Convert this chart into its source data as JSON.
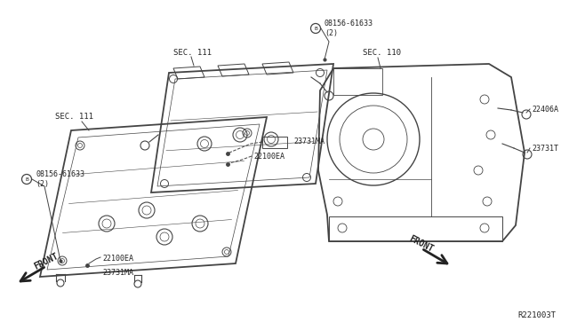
{
  "bg_color": "#ffffff",
  "diagram_id": "R221003T",
  "labels": {
    "sec111_left": "SEC. 111",
    "sec111_top": "SEC. 111",
    "sec110": "SEC. 110",
    "bolt_left": "08156-61633\n(2)",
    "bolt_right": "08156-61633\n(2)",
    "part_22100EA_left": "22100EA",
    "part_22100EA_top": "22100EA",
    "part_23731MA_left": "23731MA",
    "part_23731MA_top": "23731MA",
    "part_23731T": "23731T",
    "part_22406A": "22406A",
    "front_left": "FRONT",
    "front_right": "FRONT",
    "diagram_ref": "R221003T"
  },
  "colors": {
    "line": "#444444",
    "text": "#222222",
    "bg": "#ffffff"
  },
  "font_sizes": {
    "label": 6.0,
    "section": 6.5,
    "front": 7.0,
    "diagram_ref": 6.5
  }
}
